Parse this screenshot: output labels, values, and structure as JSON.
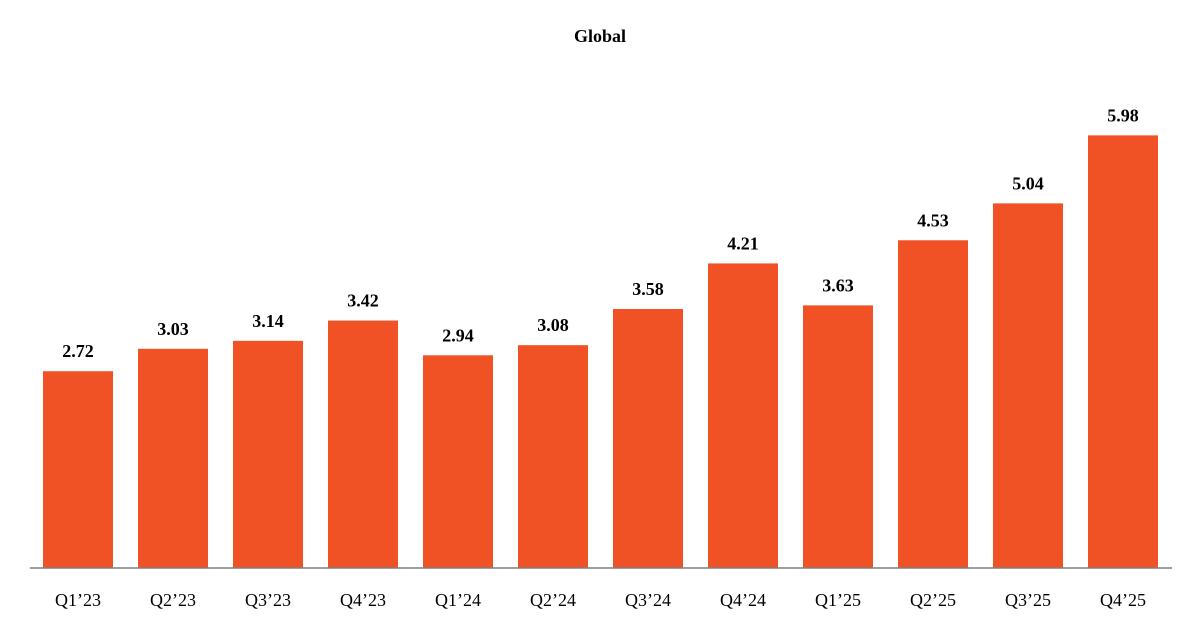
{
  "chart_data": {
    "type": "bar",
    "title": "Global",
    "xlabel": "",
    "ylabel": "",
    "categories": [
      "Q1’23",
      "Q2’23",
      "Q3’23",
      "Q4’23",
      "Q1’24",
      "Q2’24",
      "Q3’24",
      "Q4’24",
      "Q1’25",
      "Q2’25",
      "Q3’25",
      "Q4’25"
    ],
    "values": [
      2.72,
      3.03,
      3.14,
      3.42,
      2.94,
      3.08,
      3.58,
      4.21,
      3.63,
      4.53,
      5.04,
      5.98
    ],
    "value_labels": [
      "2.72",
      "3.03",
      "3.14",
      "3.42",
      "2.94",
      "3.08",
      "3.58",
      "4.21",
      "3.63",
      "4.53",
      "5.04",
      "5.98"
    ],
    "ylim": [
      0,
      7.16
    ],
    "grid": false,
    "legend": "none",
    "bar_color": "#F05125",
    "axis_color": "#7f7f7f"
  }
}
